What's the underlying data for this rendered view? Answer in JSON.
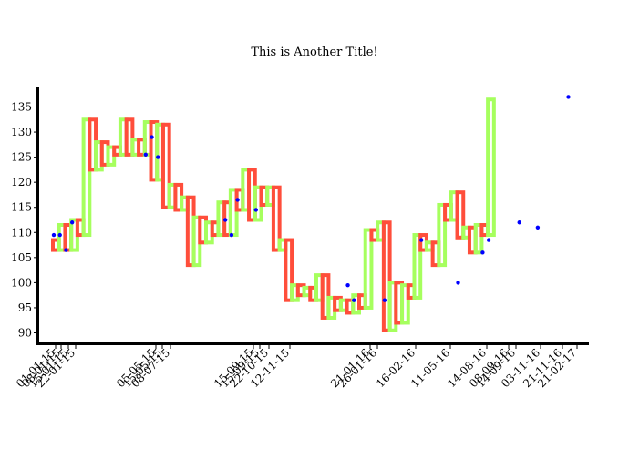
{
  "chart_data": {
    "type": "line",
    "title": "This is Another Title!",
    "xlabel": "",
    "ylabel": "",
    "ylim": [
      88.5,
      140
    ],
    "grid": false,
    "colors": {
      "up": "#a6ff5e",
      "down": "#ff4e3b",
      "marker": "#0000ff",
      "axis": "#000000"
    },
    "yticks": [
      90,
      95,
      100,
      105,
      110,
      115,
      120,
      125,
      130,
      135
    ],
    "x_labels": [
      "01-01-15",
      "08-01-15",
      "15-01-15",
      "22-01-15",
      "05-05-15",
      "15-05-15",
      "08-07-15",
      "15-09-15",
      "15-09-15",
      "22-10-15",
      "12-11-15",
      "21-01-16",
      "26-01-16",
      "16-02-16",
      "11-05-16",
      "14-08-16",
      "08-09-16",
      "14-09-16",
      "03-11-16",
      "21-11-16",
      "21-02-17"
    ],
    "steps": [
      {
        "open": 108.5,
        "close": 106.5
      },
      {
        "open": 106.5,
        "close": 111.5
      },
      {
        "open": 111.5,
        "close": 106.5
      },
      {
        "open": 106.5,
        "close": 112.5
      },
      {
        "open": 112.5,
        "close": 109.5
      },
      {
        "open": 109.5,
        "close": 132.5
      },
      {
        "open": 132.5,
        "close": 122.5
      },
      {
        "open": 122.5,
        "close": 128.0
      },
      {
        "open": 128.0,
        "close": 123.5
      },
      {
        "open": 123.5,
        "close": 127.0
      },
      {
        "open": 127.0,
        "close": 125.5
      },
      {
        "open": 125.5,
        "close": 132.5
      },
      {
        "open": 132.5,
        "close": 125.5
      },
      {
        "open": 125.5,
        "close": 128.5
      },
      {
        "open": 128.5,
        "close": 125.5
      },
      {
        "open": 125.5,
        "close": 132.0
      },
      {
        "open": 132.0,
        "close": 120.5
      },
      {
        "open": 120.5,
        "close": 131.5
      },
      {
        "open": 131.5,
        "close": 115.0
      },
      {
        "open": 115.0,
        "close": 119.5
      },
      {
        "open": 119.5,
        "close": 114.5
      },
      {
        "open": 114.5,
        "close": 117.0
      },
      {
        "open": 117.0,
        "close": 103.5
      },
      {
        "open": 103.5,
        "close": 113.0
      },
      {
        "open": 113.0,
        "close": 108.0
      },
      {
        "open": 108.0,
        "close": 112.0
      },
      {
        "open": 112.0,
        "close": 109.5
      },
      {
        "open": 109.5,
        "close": 116.0
      },
      {
        "open": 116.0,
        "close": 109.5
      },
      {
        "open": 109.5,
        "close": 118.5
      },
      {
        "open": 118.5,
        "close": 114.5
      },
      {
        "open": 114.5,
        "close": 122.5
      },
      {
        "open": 122.5,
        "close": 112.5
      },
      {
        "open": 112.5,
        "close": 119.0
      },
      {
        "open": 119.0,
        "close": 115.5
      },
      {
        "open": 115.5,
        "close": 119.0
      },
      {
        "open": 119.0,
        "close": 106.5
      },
      {
        "open": 106.5,
        "close": 108.5
      },
      {
        "open": 108.5,
        "close": 96.5
      },
      {
        "open": 96.5,
        "close": 99.5
      },
      {
        "open": 99.5,
        "close": 97.5
      },
      {
        "open": 97.5,
        "close": 99.0
      },
      {
        "open": 99.0,
        "close": 96.5
      },
      {
        "open": 96.5,
        "close": 101.5
      },
      {
        "open": 101.5,
        "close": 93.0
      },
      {
        "open": 93.0,
        "close": 97.0
      },
      {
        "open": 97.0,
        "close": 94.5
      },
      {
        "open": 94.5,
        "close": 96.5
      },
      {
        "open": 96.5,
        "close": 94.0
      },
      {
        "open": 94.0,
        "close": 97.5
      },
      {
        "open": 97.5,
        "close": 95.0
      },
      {
        "open": 95.0,
        "close": 110.5
      },
      {
        "open": 110.5,
        "close": 108.5
      },
      {
        "open": 108.5,
        "close": 112.0
      },
      {
        "open": 112.0,
        "close": 90.5
      },
      {
        "open": 90.5,
        "close": 100.0
      },
      {
        "open": 100.0,
        "close": 92.0
      },
      {
        "open": 92.0,
        "close": 99.5
      },
      {
        "open": 99.5,
        "close": 97.0
      },
      {
        "open": 97.0,
        "close": 109.5
      },
      {
        "open": 109.5,
        "close": 106.5
      },
      {
        "open": 106.5,
        "close": 108.0
      },
      {
        "open": 108.0,
        "close": 103.5
      },
      {
        "open": 103.5,
        "close": 115.5
      },
      {
        "open": 115.5,
        "close": 112.5
      },
      {
        "open": 112.5,
        "close": 118.0
      },
      {
        "open": 118.0,
        "close": 109.0
      },
      {
        "open": 109.0,
        "close": 111.0
      },
      {
        "open": 111.0,
        "close": 106.0
      },
      {
        "open": 106.0,
        "close": 111.5
      },
      {
        "open": 111.5,
        "close": 109.5
      },
      {
        "open": 109.5,
        "close": 136.5
      }
    ],
    "markers": [
      {
        "x": 0,
        "y": 109.5
      },
      {
        "x": 1,
        "y": 109.5
      },
      {
        "x": 2,
        "y": 106.5
      },
      {
        "x": 3,
        "y": 112.0
      },
      {
        "x": 15,
        "y": 125.5
      },
      {
        "x": 16,
        "y": 129.0
      },
      {
        "x": 17,
        "y": 125.0
      },
      {
        "x": 28,
        "y": 112.5
      },
      {
        "x": 29,
        "y": 109.5
      },
      {
        "x": 30,
        "y": 116.5
      },
      {
        "x": 33,
        "y": 114.5
      },
      {
        "x": 48,
        "y": 99.5
      },
      {
        "x": 49,
        "y": 96.5
      },
      {
        "x": 54,
        "y": 96.5
      },
      {
        "x": 60,
        "y": 108.5
      },
      {
        "x": 66,
        "y": 100.0
      },
      {
        "x": 70,
        "y": 106.0
      },
      {
        "x": 71,
        "y": 108.5
      },
      {
        "x": 76,
        "y": 112.0
      },
      {
        "x": 79,
        "y": 111.0
      },
      {
        "x": 84,
        "y": 137.0
      }
    ]
  }
}
